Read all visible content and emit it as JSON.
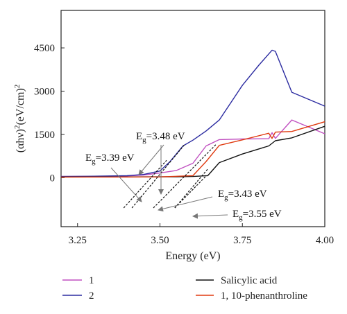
{
  "chart_data": {
    "type": "line",
    "title": "",
    "xlabel": "Energy (eV)",
    "ylabel_parts": [
      "(αhν)",
      "2",
      "(eV/cm)",
      "2"
    ],
    "xlim": [
      3.2,
      4.0
    ],
    "ylim": [
      -1700,
      5800
    ],
    "x_ticks": [
      3.25,
      3.5,
      3.75,
      4.0
    ],
    "x_tick_labels": [
      "3.25",
      "3.50",
      "3.75",
      "4.00"
    ],
    "y_ticks": [
      0,
      1500,
      3000,
      4500
    ],
    "y_tick_labels": [
      "0",
      "1500",
      "3000",
      "4500"
    ],
    "grid": false,
    "series": [
      {
        "name": "1",
        "color": "#c04fc0",
        "x": [
          3.2,
          3.3,
          3.4,
          3.45,
          3.5,
          3.55,
          3.6,
          3.64,
          3.68,
          3.75,
          3.83,
          3.84,
          3.85,
          3.9,
          4.0
        ],
        "y": [
          40,
          45,
          60,
          90,
          160,
          250,
          500,
          1100,
          1320,
          1340,
          1350,
          1560,
          1360,
          2000,
          1520
        ]
      },
      {
        "name": "2",
        "color": "#2b2ba0",
        "x": [
          3.2,
          3.3,
          3.4,
          3.45,
          3.5,
          3.53,
          3.57,
          3.6,
          3.64,
          3.68,
          3.75,
          3.8,
          3.84,
          3.85,
          3.9,
          4.0
        ],
        "y": [
          40,
          50,
          70,
          110,
          230,
          550,
          1100,
          1300,
          1620,
          2000,
          3200,
          3900,
          4420,
          4380,
          2960,
          2480
        ]
      },
      {
        "name": "Salicylic acid",
        "color": "#111111",
        "x": [
          3.2,
          3.4,
          3.55,
          3.6,
          3.645,
          3.68,
          3.75,
          3.83,
          3.85,
          3.9,
          4.0
        ],
        "y": [
          20,
          25,
          30,
          40,
          70,
          520,
          820,
          1100,
          1280,
          1380,
          1780
        ]
      },
      {
        "name": "1, 10-phenanthroline",
        "color": "#e03a10",
        "x": [
          3.2,
          3.4,
          3.5,
          3.6,
          3.64,
          3.68,
          3.75,
          3.83,
          3.84,
          3.85,
          3.9,
          4.0
        ],
        "y": [
          20,
          22,
          25,
          70,
          560,
          1120,
          1310,
          1540,
          1360,
          1580,
          1600,
          1940
        ]
      }
    ],
    "tangent_lines": [
      {
        "x": [
          3.39,
          3.52
        ],
        "y": [
          -1050,
          600
        ]
      },
      {
        "x": [
          3.415,
          3.575
        ],
        "y": [
          -1050,
          1150
        ]
      },
      {
        "x": [
          3.48,
          3.67
        ],
        "y": [
          -1050,
          1150
        ]
      },
      {
        "x": [
          3.545,
          3.645
        ],
        "y": [
          -1050,
          300
        ]
      },
      {
        "x": [
          3.545,
          3.64
        ],
        "y": [
          -1050,
          60
        ]
      }
    ],
    "annotations": [
      {
        "base": "E",
        "sub": "g",
        "value": "=3.48 eV"
      },
      {
        "base": "E",
        "sub": "g",
        "value": "=3.39 eV"
      },
      {
        "base": "E",
        "sub": "g",
        "value": "=3.43 eV"
      },
      {
        "base": "E",
        "sub": "g",
        "value": "=3.55 eV"
      }
    ]
  },
  "legend": [
    {
      "label": "1",
      "color": "#c04fc0"
    },
    {
      "label": "2",
      "color": "#2b2ba0"
    },
    {
      "label": "Salicylic acid",
      "color": "#111111"
    },
    {
      "label": "1, 10-phenanthroline",
      "color": "#e03a10"
    }
  ]
}
